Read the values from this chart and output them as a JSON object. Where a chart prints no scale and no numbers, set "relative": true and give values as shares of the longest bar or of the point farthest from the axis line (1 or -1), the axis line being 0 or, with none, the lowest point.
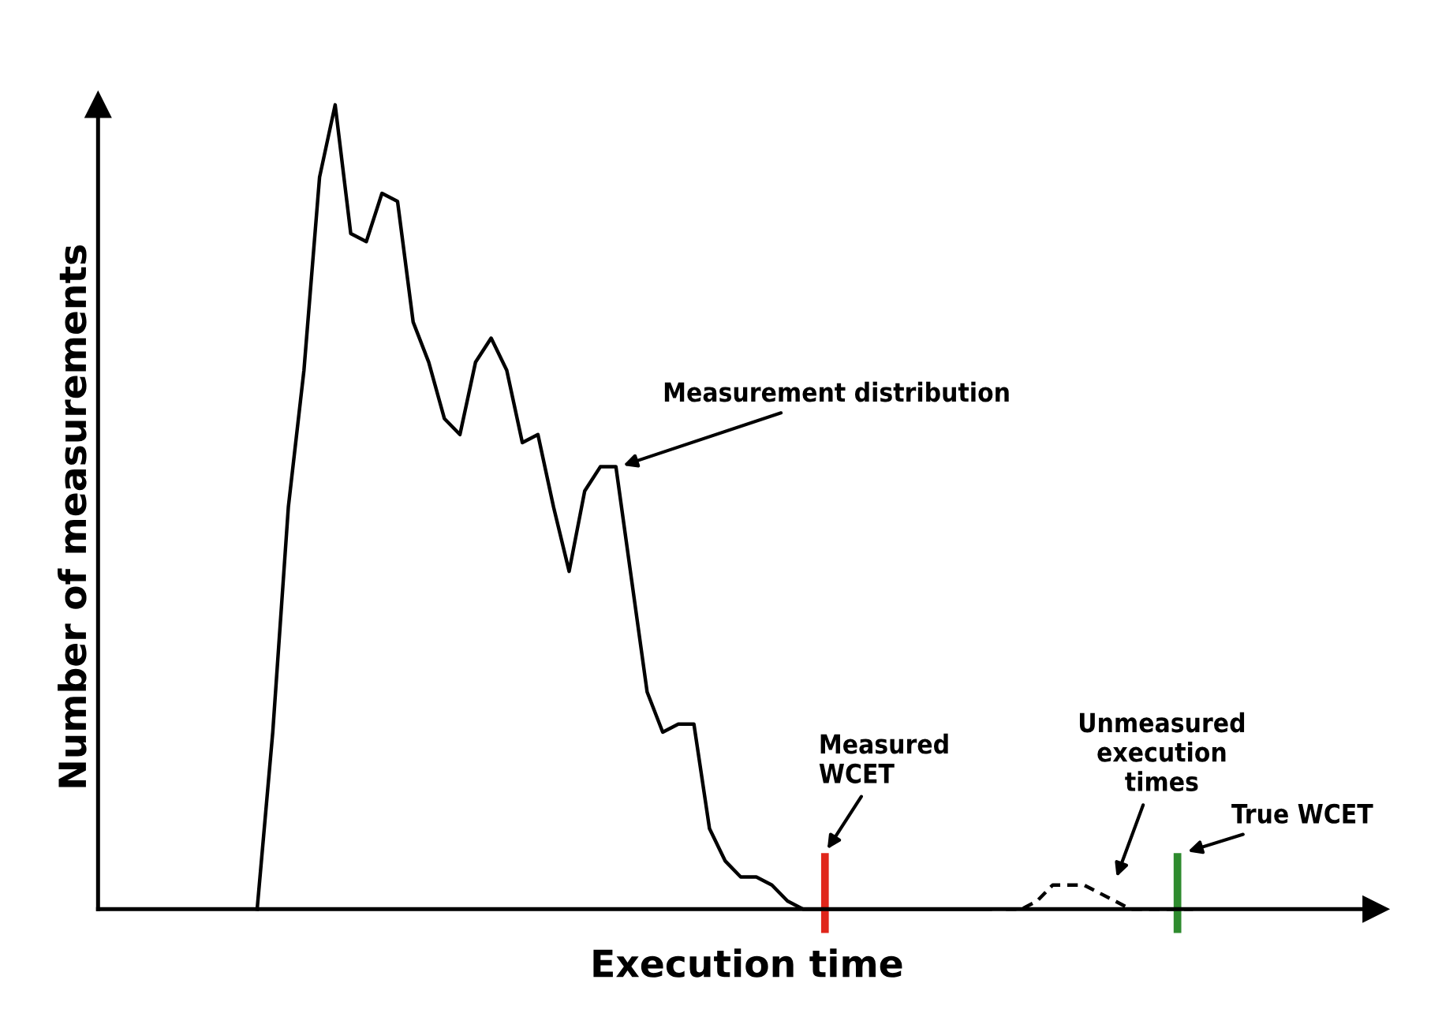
{
  "chart_data": {
    "type": "line",
    "relative": true,
    "xlabel": "Execution time",
    "ylabel": "Number of measurements",
    "categories": [
      null,
      null,
      null,
      null,
      null,
      null,
      null,
      null,
      null,
      null,
      null,
      null,
      null,
      null,
      null,
      null,
      null,
      null,
      null,
      null,
      null,
      null,
      null,
      null,
      null,
      null,
      null,
      null,
      null,
      null,
      null,
      null,
      null,
      null,
      null,
      null,
      null,
      null,
      null,
      null,
      null,
      null,
      null,
      null,
      null,
      null,
      null,
      null,
      null,
      null,
      null,
      null,
      null,
      null,
      null,
      null,
      null,
      null,
      null,
      null,
      null
    ],
    "series": [
      {
        "color": "#000000",
        "line_style": "solid",
        "values": [
          0,
          0.22,
          0.5,
          0.67,
          0.91,
          1,
          0.84,
          0.83,
          0.89,
          0.88,
          0.73,
          0.68,
          0.61,
          0.59,
          0.68,
          0.71,
          0.67,
          0.58,
          0.59,
          0.5,
          0.42,
          0.52,
          0.55,
          0.55,
          0.41,
          0.27,
          0.22,
          0.23,
          0.23,
          0.1,
          0.06,
          0.04,
          0.04,
          0.03,
          0.01,
          0,
          0,
          0,
          0,
          0,
          0,
          0,
          0,
          0,
          0,
          0,
          0,
          0,
          null,
          null,
          null,
          null,
          null,
          null,
          null,
          null,
          null,
          null,
          null,
          null,
          null
        ]
      },
      {
        "color": "#000000",
        "line_style": "dashed",
        "values": [
          null,
          null,
          null,
          null,
          null,
          null,
          null,
          null,
          null,
          null,
          null,
          null,
          null,
          null,
          null,
          null,
          null,
          null,
          null,
          null,
          null,
          null,
          null,
          null,
          null,
          null,
          null,
          null,
          null,
          null,
          null,
          null,
          null,
          null,
          null,
          null,
          null,
          null,
          null,
          null,
          null,
          null,
          null,
          null,
          null,
          null,
          null,
          null,
          0,
          0,
          0.01,
          0.03,
          0.03,
          0.03,
          0.02,
          0.01,
          0,
          0,
          0,
          0,
          0
        ]
      }
    ],
    "annotations": [
      "Measurement distribution",
      "Measured\nWCET",
      "Unmeasured\nexecution\ntimes",
      "True WCET"
    ],
    "legend": false,
    "marker": "none"
  }
}
